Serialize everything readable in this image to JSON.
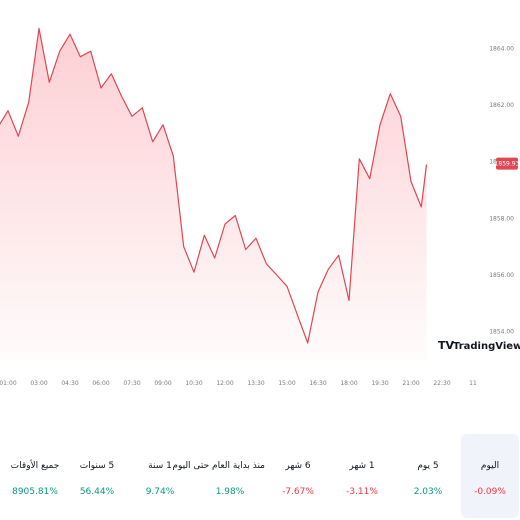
{
  "chart_data": {
    "type": "area",
    "title": "",
    "xlabel": "",
    "ylabel": "",
    "ylim": [
      1853.0,
      1865.0
    ],
    "y_ticks": [
      "1864.00",
      "1862.00",
      "1860.00",
      "1858.00",
      "1856.00",
      "1854.00"
    ],
    "x_ticks": [
      "01:00",
      "03:00",
      "04:30",
      "06:00",
      "07:30",
      "09:00",
      "10:30",
      "12:00",
      "13:30",
      "15:00",
      "16:30",
      "18:00",
      "19:30",
      "21:00",
      "22:30",
      "11"
    ],
    "last_price": "1859.93",
    "grid": false,
    "series": [
      {
        "color": "#e14652",
        "x": [
          "00:00",
          "00:30",
          "01:00",
          "01:30",
          "02:00",
          "02:30",
          "03:00",
          "03:30",
          "04:00",
          "04:30",
          "05:00",
          "05:30",
          "06:00",
          "06:30",
          "07:00",
          "07:30",
          "08:00",
          "08:30",
          "09:00",
          "09:30",
          "10:00",
          "10:30",
          "11:00",
          "11:30",
          "12:00",
          "12:30",
          "13:00",
          "13:30",
          "14:00",
          "14:30",
          "15:00",
          "15:30",
          "16:00",
          "16:30",
          "17:00",
          "17:30",
          "18:00",
          "18:30",
          "19:00",
          "19:30",
          "20:00",
          "20:30",
          "21:00",
          "21:15"
        ],
        "values": [
          1860.6,
          1861.2,
          1861.8,
          1860.9,
          1862.1,
          1864.7,
          1862.8,
          1863.9,
          1864.5,
          1863.7,
          1863.9,
          1862.6,
          1863.1,
          1862.3,
          1861.6,
          1861.9,
          1860.7,
          1861.3,
          1860.2,
          1857.0,
          1856.1,
          1857.4,
          1856.6,
          1857.8,
          1858.1,
          1856.9,
          1857.3,
          1856.4,
          1856.0,
          1855.6,
          1854.6,
          1853.6,
          1855.4,
          1856.2,
          1856.7,
          1855.1,
          1860.1,
          1859.4,
          1861.3,
          1862.4,
          1861.6,
          1859.3,
          1858.4,
          1859.9
        ]
      }
    ]
  },
  "logo": {
    "text": "TradingView",
    "mark": "TV"
  },
  "periods": [
    {
      "label": "اليوم",
      "value": "-0.09%",
      "trend": "neg",
      "active": true
    },
    {
      "label": "5 يوم",
      "value": "2.03%",
      "trend": "pos",
      "active": false
    },
    {
      "label": "1 شهر",
      "value": "-3.11%",
      "trend": "neg",
      "active": false
    },
    {
      "label": "6 شهر",
      "value": "-7.67%",
      "trend": "neg",
      "active": false
    },
    {
      "label": "منذ بداية العام حتى اليوم",
      "value": "1.98%",
      "trend": "pos",
      "active": false
    },
    {
      "label": "1 سنة",
      "value": "9.74%",
      "trend": "pos",
      "active": false
    },
    {
      "label": "5 سنوات",
      "value": "56.44%",
      "trend": "pos",
      "active": false
    },
    {
      "label": "جميع الأوقات",
      "value": "8905.81%",
      "trend": "pos",
      "active": false
    }
  ]
}
